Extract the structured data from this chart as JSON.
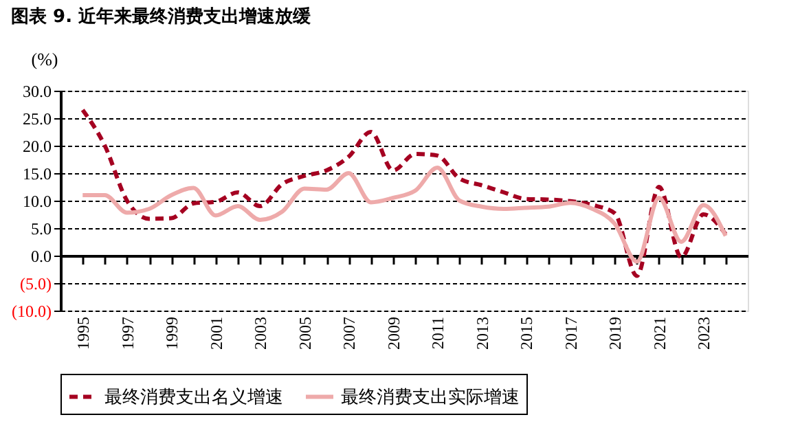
{
  "chart_data": {
    "type": "line",
    "title": "图表 9. 近年来最终消费支出增速放缓",
    "ylabel": "(%)",
    "x": [
      1995,
      1996,
      1997,
      1998,
      1999,
      2000,
      2001,
      2002,
      2003,
      2004,
      2005,
      2006,
      2007,
      2008,
      2009,
      2010,
      2011,
      2012,
      2013,
      2014,
      2015,
      2016,
      2017,
      2018,
      2019,
      2020,
      2021,
      2022,
      2023,
      2024
    ],
    "series": [
      {
        "name": "最终消费支出名义增速",
        "color": "#a50021",
        "line_style": "dashed",
        "values": [
          26.5,
          20,
          10,
          6.7,
          6.8,
          9.5,
          9.8,
          11.5,
          9,
          13,
          14.5,
          15.5,
          18,
          22.5,
          15.5,
          18.5,
          18.2,
          14,
          12.8,
          11.5,
          10.3,
          10.2,
          9.9,
          9.2,
          7.7,
          -3.7,
          12.5,
          -0.3,
          7.5,
          3.9
        ]
      },
      {
        "name": "最终消费支出实际增速",
        "color": "#eeaaaa",
        "line_style": "solid",
        "values": [
          11,
          11,
          7.8,
          8.5,
          11,
          12.3,
          7.3,
          9,
          6.5,
          8,
          12.2,
          12,
          15,
          9.7,
          10.5,
          11.8,
          16,
          10,
          8.9,
          8.5,
          8.7,
          8.9,
          9.6,
          8.5,
          5.8,
          -1.1,
          10.5,
          2.5,
          9.2,
          3.6
        ]
      }
    ],
    "xlim": [
      1994,
      2025
    ],
    "xticks": [
      1995,
      {
        "value": 1996,
        "label": null
      },
      1997,
      {
        "value": 1998,
        "label": null
      },
      1999,
      {
        "value": 2000,
        "label": null
      },
      2001,
      {
        "value": 2002,
        "label": null
      },
      2003,
      {
        "value": 2004,
        "label": null
      },
      2005,
      {
        "value": 2006,
        "label": null
      },
      2007,
      {
        "value": 2008,
        "label": null
      },
      2009,
      {
        "value": 2010,
        "label": null
      },
      2011,
      {
        "value": 2012,
        "label": null
      },
      2013,
      {
        "value": 2014,
        "label": null
      },
      2015,
      {
        "value": 2016,
        "label": null
      },
      2017,
      {
        "value": 2018,
        "label": null
      },
      2019,
      {
        "value": 2020,
        "label": null
      },
      2021,
      {
        "value": 2022,
        "label": null
      },
      2023,
      {
        "value": 2024,
        "label": null
      }
    ],
    "ylim": [
      -10,
      30
    ],
    "yticks": [
      {
        "value": 30,
        "label": "30.0"
      },
      {
        "value": 25,
        "label": "25.0"
      },
      {
        "value": 20,
        "label": "20.0"
      },
      {
        "value": 15,
        "label": "15.0"
      },
      {
        "value": 10,
        "label": "10.0"
      },
      {
        "value": 5,
        "label": "5.0"
      },
      {
        "value": 0,
        "label": "0.0"
      },
      {
        "value": -5,
        "label": "(5.0)"
      },
      {
        "value": -10,
        "label": "(10.0)"
      }
    ],
    "grid": "y",
    "legend": "bottom",
    "marker": "none"
  }
}
